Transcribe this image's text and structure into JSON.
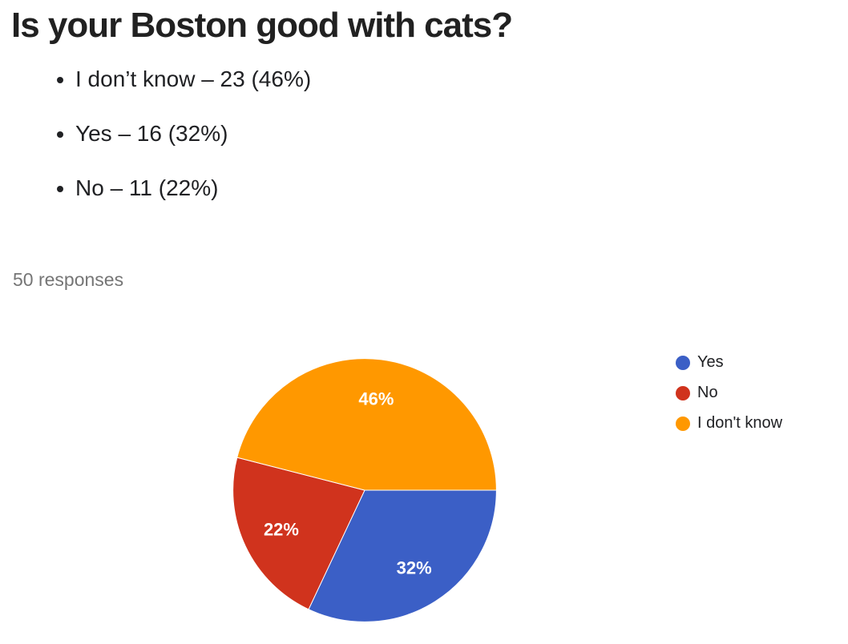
{
  "page": {
    "title": "Is your Boston good with cats?",
    "summary_items": [
      "I don’t know – 23 (46%)",
      "Yes – 16 (32%)",
      "No – 11 (22%)"
    ],
    "responses_label": "50 responses"
  },
  "chart_data": {
    "type": "pie",
    "title": "Is your Boston good with cats?",
    "responses_total": 50,
    "categories": [
      "Yes",
      "No",
      "I don't know"
    ],
    "values": [
      16,
      11,
      23
    ],
    "percent_labels": [
      "32%",
      "22%",
      "46%"
    ],
    "colors": [
      "#3B5FC6",
      "#D0331D",
      "#FF9800"
    ],
    "slice_label_color": "#ffffff",
    "legend_position": "right",
    "start_angle_deg_clockwise_from_top": 90
  }
}
